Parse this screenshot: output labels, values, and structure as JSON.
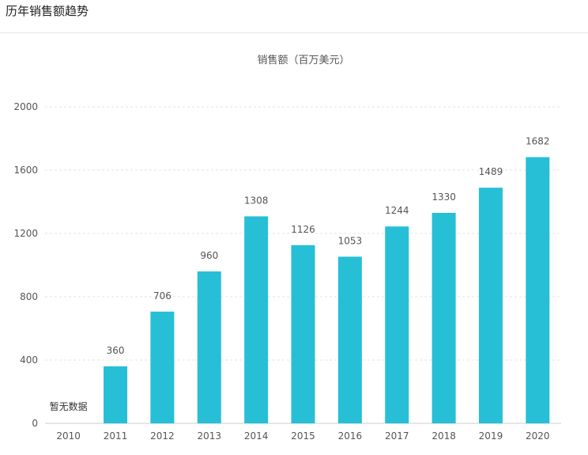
{
  "panel": {
    "title": "历年销售额趋势"
  },
  "colors": {
    "bar": "#26bfd6",
    "grid": "#e3e3e3",
    "axis": "#cccccc",
    "text": "#555555"
  },
  "chart_data": {
    "type": "bar",
    "title": "",
    "series_title": "销售额（百万美元）",
    "xlabel": "",
    "ylabel": "",
    "categories": [
      "2010",
      "2011",
      "2012",
      "2013",
      "2014",
      "2015",
      "2016",
      "2017",
      "2018",
      "2019",
      "2020"
    ],
    "series": [
      {
        "name": "销售额（百万美元）",
        "values": [
          null,
          360,
          706,
          960,
          1308,
          1126,
          1053,
          1244,
          1330,
          1489,
          1682
        ]
      }
    ],
    "data_labels": [
      "暂无数据",
      "360",
      "706",
      "960",
      "1308",
      "1126",
      "1053",
      "1244",
      "1330",
      "1489",
      "1682"
    ],
    "ylim": [
      0,
      2000
    ],
    "yticks": [
      0,
      400,
      800,
      1200,
      1600,
      2000
    ],
    "grid": true,
    "grid_style": "dashed",
    "legend": "none"
  }
}
